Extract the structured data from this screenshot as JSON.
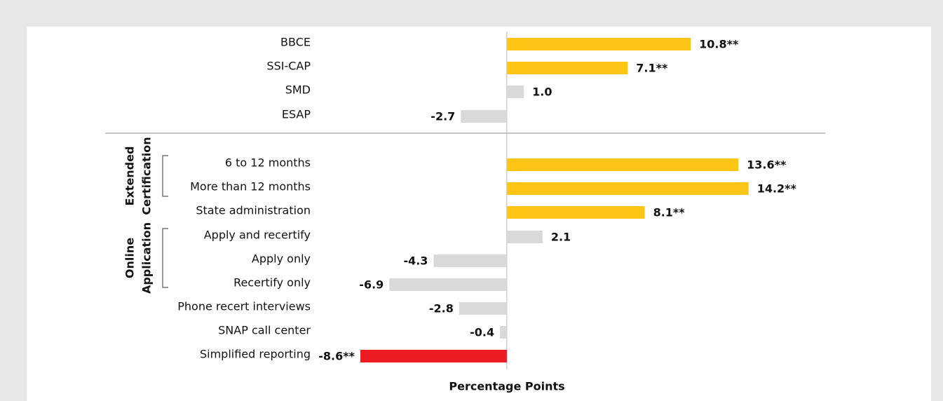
{
  "chart_data": {
    "type": "bar",
    "orientation": "horizontal",
    "x_label": "Percentage Points",
    "categories": [
      "BBCE",
      "SSI-CAP",
      "SMD",
      "ESAP",
      "6 to 12 months",
      "More than 12 months",
      "State administration",
      "Apply and recertify",
      "Apply only",
      "Recertify only",
      "Phone recert interviews",
      "SNAP call center",
      "Simplified reporting"
    ],
    "values": [
      10.8,
      7.1,
      1.0,
      -2.7,
      13.6,
      14.2,
      8.1,
      2.1,
      -4.3,
      -6.9,
      -2.8,
      -0.4,
      -8.6
    ],
    "value_labels": [
      "10.8**",
      "7.1**",
      "1.0",
      "-2.7",
      "13.6**",
      "14.2**",
      "8.1**",
      "2.1",
      "-4.3",
      "-6.9",
      "-2.8",
      "-0.4",
      "-8.6**"
    ],
    "colors": [
      "#fdc516",
      "#fdc516",
      "#d9d9d9",
      "#d9d9d9",
      "#fdc516",
      "#fdc516",
      "#fdc516",
      "#d9d9d9",
      "#d9d9d9",
      "#d9d9d9",
      "#d9d9d9",
      "#d9d9d9",
      "#ed1c24"
    ],
    "groups": [
      [
        "Extended",
        "Certification"
      ],
      [
        "Online",
        "Application"
      ]
    ],
    "xlim": [
      -10,
      18
    ]
  }
}
